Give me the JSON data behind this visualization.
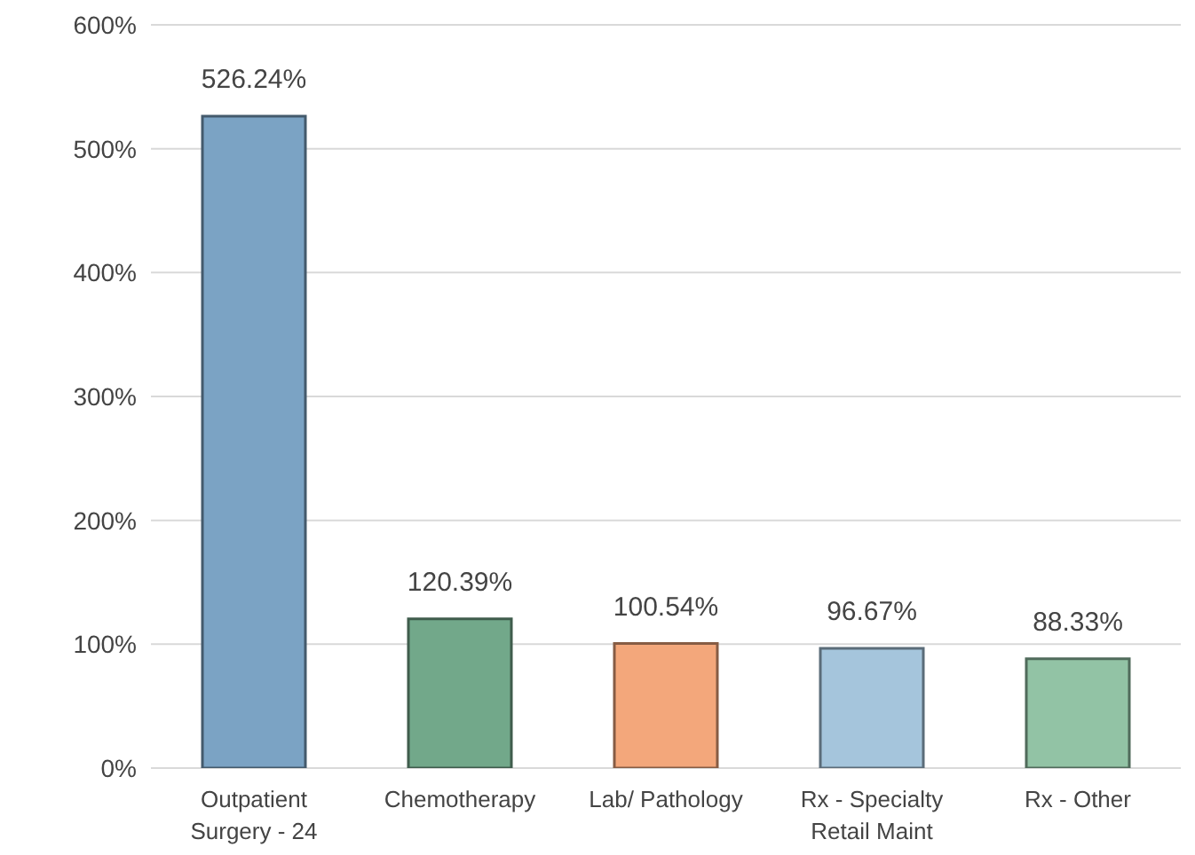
{
  "chart_data": {
    "type": "bar",
    "categories": [
      "Outpatient Surgery - 24",
      "Chemotherapy",
      "Lab/ Pathology",
      "Rx - Specialty Retail Maint",
      "Rx - Other"
    ],
    "values": [
      526.24,
      120.39,
      100.54,
      96.67,
      88.33
    ],
    "colors": [
      "#7ba3c4",
      "#72a88a",
      "#f3a77b",
      "#a5c5dc",
      "#92c3a5"
    ],
    "value_labels": [
      "526.24%",
      "120.39%",
      "100.54%",
      "96.67%",
      "88.33%"
    ],
    "ylim": [
      0,
      600
    ],
    "yticks": [
      {
        "value": 0,
        "label": "0%"
      },
      {
        "value": 100,
        "label": "100%"
      },
      {
        "value": 200,
        "label": "200%"
      },
      {
        "value": 300,
        "label": "300%"
      },
      {
        "value": 400,
        "label": "400%"
      },
      {
        "value": 500,
        "label": "500%"
      },
      {
        "value": 600,
        "label": "600%"
      }
    ],
    "grid": "y"
  }
}
